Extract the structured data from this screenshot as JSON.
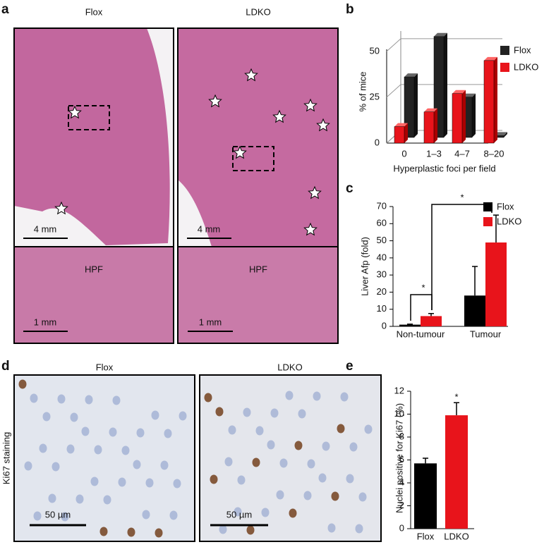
{
  "panel_a": {
    "letter": "a",
    "left_title": "Flox",
    "right_title": "LDKO",
    "scale_top": "4 mm",
    "scale_bottom": "1 mm",
    "inset_label": "HPF"
  },
  "panel_d": {
    "letter": "d",
    "left_title": "Flox",
    "right_title": "LDKO",
    "row_label": "Ki67 staining",
    "scale": "50 µm"
  },
  "chart_data": [
    {
      "type": "bar3d",
      "label": "b",
      "xlabel": "Hyperplastic foci per field",
      "ylabel": "% of mice",
      "categories": [
        "0",
        "1–3",
        "4–7",
        "8–20"
      ],
      "series": [
        {
          "name": "Flox",
          "color": "#222222",
          "values": [
            33,
            55,
            22,
            1
          ]
        },
        {
          "name": "LDKO",
          "color": "#e8141b",
          "values": [
            9,
            17,
            27,
            45
          ]
        }
      ],
      "ylim": [
        0,
        58
      ],
      "yticks": [
        0,
        25,
        50
      ],
      "grid": true,
      "legend": "right"
    },
    {
      "type": "bar",
      "label": "c",
      "ylabel": "Liver Afp (fold)",
      "categories": [
        "Non-tumour",
        "Tumour"
      ],
      "series": [
        {
          "name": "Flox",
          "color": "#000000",
          "values": [
            1,
            18
          ],
          "errors": [
            0.3,
            17
          ]
        },
        {
          "name": "LDKO",
          "color": "#e8141b",
          "values": [
            6,
            49
          ],
          "errors": [
            1.5,
            16
          ]
        }
      ],
      "ylim": [
        0,
        70
      ],
      "yticks": [
        0,
        10,
        20,
        30,
        40,
        50,
        60,
        70
      ],
      "legend": "top-right",
      "annotations": [
        "*",
        "*"
      ]
    },
    {
      "type": "bar",
      "label": "e",
      "ylabel": "Nuclei positive for Ki67 (%)",
      "categories": [
        "Flox",
        "LDKO"
      ],
      "series": [
        {
          "colors": [
            "#000000",
            "#e8141b"
          ],
          "values": [
            5.7,
            9.9
          ],
          "errors": [
            0.45,
            1.1
          ]
        }
      ],
      "ylim": [
        0,
        12
      ],
      "yticks": [
        0,
        2,
        4,
        6,
        8,
        10,
        12
      ],
      "annotations": [
        "*"
      ]
    }
  ]
}
